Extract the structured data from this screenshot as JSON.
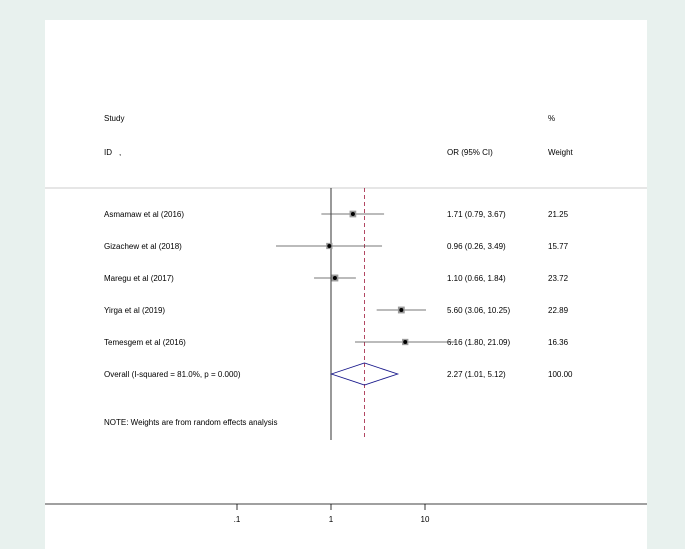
{
  "chart_data": {
    "type": "forest",
    "title": "",
    "header": {
      "study_line1": "Study",
      "study_line2": "ID",
      "id_suffix": ",",
      "or_label": "OR (95% CI)",
      "weight_line1": "%",
      "weight_line2": "Weight"
    },
    "studies": [
      {
        "name": "Asmamaw et al (2016)",
        "or": 1.71,
        "lo": 0.79,
        "hi": 3.67,
        "ci_text": "1.71 (0.79, 3.67)",
        "weight": "21.25"
      },
      {
        "name": "Gizachew  et al (2018)",
        "or": 0.96,
        "lo": 0.26,
        "hi": 3.49,
        "ci_text": "0.96 (0.26, 3.49)",
        "weight": "15.77"
      },
      {
        "name": "Maregu  et al (2017)",
        "or": 1.1,
        "lo": 0.66,
        "hi": 1.84,
        "ci_text": "1.10 (0.66, 1.84)",
        "weight": "23.72"
      },
      {
        "name": "Yirga  et al (2019)",
        "or": 5.6,
        "lo": 3.06,
        "hi": 10.25,
        "ci_text": "5.60 (3.06, 10.25)",
        "weight": "22.89"
      },
      {
        "name": "Temesgem et al (2016)",
        "or": 6.16,
        "lo": 1.8,
        "hi": 21.09,
        "ci_text": "6.16 (1.80, 21.09)",
        "weight": "16.36"
      }
    ],
    "overall": {
      "label": "Overall  (I-squared = 81.0%, p = 0.000)",
      "or": 2.27,
      "lo": 1.01,
      "hi": 5.12,
      "ci_text": "2.27 (1.01, 5.12)",
      "weight": "100.00"
    },
    "note": "NOTE: Weights are from random effects analysis",
    "x_scale": "log",
    "x_ticks": [
      0.1,
      1,
      10
    ],
    "x_tick_labels": [
      ".1",
      "1",
      "10"
    ],
    "null_line": 1,
    "colors": {
      "background": "#e8f1ee",
      "panel": "#ffffff",
      "ci_line": "#4a4a4a",
      "diamond": "#1a1a8c",
      "overall_line": "#a01a3c",
      "box": "#9a9a9a"
    }
  }
}
